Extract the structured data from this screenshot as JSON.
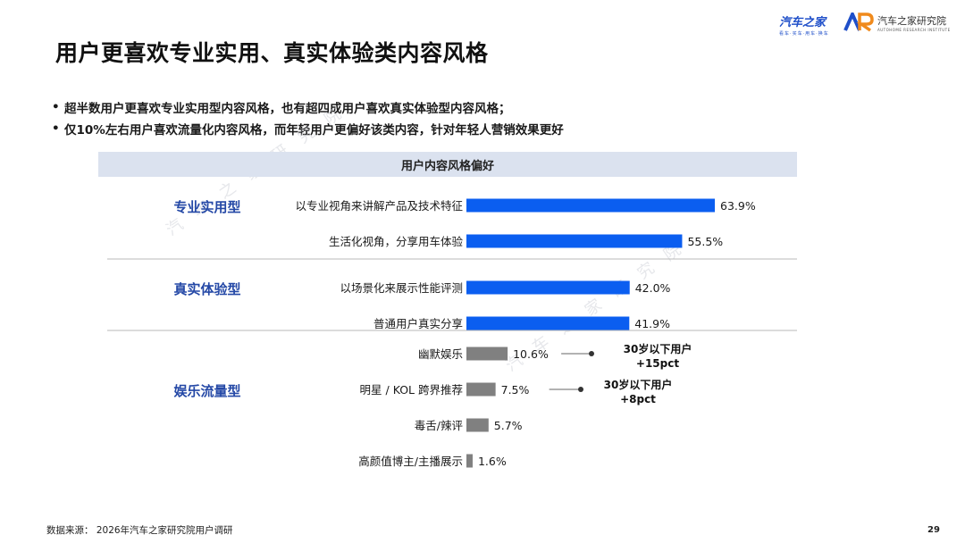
{
  "page": {
    "title": "用户更喜欢专业实用、真实体验类内容风格",
    "bullets": [
      "超半数用户更喜欢专业实用型内容风格，也有超四成用户喜欢真实体验型内容风格；",
      "仅10%左右用户喜欢流量化内容风格，而年轻用户更偏好该类内容，针对年轻人营销效果更好"
    ],
    "source": "数据来源：  2026年汽车之家研究院用户调研",
    "page_number": "29",
    "logo_left": {
      "name": "汽车之家",
      "tagline": "看车·买车·用车·换车"
    },
    "logo_right": {
      "name": "汽车之家研究院",
      "tagline": "AUTOHOME RESEARCH INSTITUTE"
    },
    "watermark": "汽车之家研究院",
    "accent_color": "#0b5ef0",
    "gray_bar_color": "#808080",
    "group_label_color": "#2448a6"
  },
  "chart_data": {
    "type": "bar",
    "orientation": "horizontal",
    "title": "用户内容风格偏好",
    "unit": "%",
    "groups": [
      {
        "name": "专业实用型",
        "color": "#0b5ef0",
        "items": [
          {
            "label": "以专业视角来讲解产品及技术特征",
            "value": 63.9
          },
          {
            "label": "生活化视角，分享用车体验",
            "value": 55.5
          }
        ]
      },
      {
        "name": "真实体验型",
        "color": "#0b5ef0",
        "items": [
          {
            "label": "以场景化来展示性能评测",
            "value": 42.0
          },
          {
            "label": "普通用户真实分享",
            "value": 41.9
          }
        ]
      },
      {
        "name": "娱乐流量型",
        "color": "#808080",
        "items": [
          {
            "label": "幽默娱乐",
            "value": 10.6
          },
          {
            "label": "明星 / KOL 跨界推荐",
            "value": 7.5
          },
          {
            "label": "毒舌/辣评",
            "value": 5.7
          },
          {
            "label": "高颜值博主/主播展示",
            "value": 1.6
          }
        ]
      }
    ],
    "annotations": [
      {
        "target": "幽默娱乐",
        "line1": "30岁以下用户",
        "line2": "+15pct"
      },
      {
        "target": "明星 / KOL 跨界推荐",
        "line1": "30岁以下用户",
        "line2": "+8pct"
      }
    ],
    "xlim": [
      0,
      70
    ],
    "grid": false,
    "legend": "none"
  }
}
